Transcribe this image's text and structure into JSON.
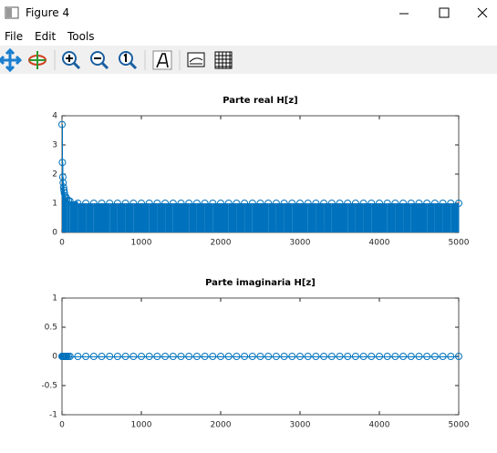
{
  "window": {
    "title": "Figure 4"
  },
  "menu": [
    "File",
    "Edit",
    "Tools"
  ],
  "chart_data": [
    {
      "type": "stem",
      "title": "Parte real H[z]",
      "color": "#0072bd",
      "x": [
        0,
        5,
        10,
        15,
        20,
        25,
        30,
        40,
        50,
        60,
        80,
        100,
        200,
        300,
        400,
        500,
        600,
        700,
        800,
        900,
        1000,
        1100,
        1200,
        1300,
        1400,
        1500,
        1600,
        1700,
        1800,
        1900,
        2000,
        2100,
        2200,
        2300,
        2400,
        2500,
        2600,
        2700,
        2800,
        2900,
        3000,
        3100,
        3200,
        3300,
        3400,
        3500,
        3600,
        3700,
        3800,
        3900,
        4000,
        4100,
        4200,
        4300,
        4400,
        4500,
        4600,
        4700,
        4800,
        4900,
        5000
      ],
      "values": [
        3.7,
        2.4,
        1.9,
        1.7,
        1.55,
        1.45,
        1.35,
        1.25,
        1.2,
        1.15,
        1.1,
        1.07,
        1,
        1,
        1,
        1,
        1,
        1,
        1,
        1,
        1,
        1,
        1,
        1,
        1,
        1,
        1,
        1,
        1,
        1,
        1,
        1,
        1,
        1,
        1,
        1,
        1,
        1,
        1,
        1,
        1,
        1,
        1,
        1,
        1,
        1,
        1,
        1,
        1,
        1,
        1,
        1,
        1,
        1,
        1,
        1,
        1,
        1,
        1,
        1,
        1
      ],
      "xlim": [
        0,
        5000
      ],
      "ylim": [
        0,
        4
      ],
      "xticks": [
        0,
        1000,
        2000,
        3000,
        4000,
        5000
      ],
      "yticks": [
        0,
        1,
        2,
        3,
        4
      ]
    },
    {
      "type": "stem",
      "title": "Parte imaginaria H[z]",
      "color": "#0072bd",
      "x": [
        0,
        5,
        10,
        15,
        20,
        25,
        30,
        40,
        50,
        60,
        80,
        100,
        200,
        300,
        400,
        500,
        600,
        700,
        800,
        900,
        1000,
        1100,
        1200,
        1300,
        1400,
        1500,
        1600,
        1700,
        1800,
        1900,
        2000,
        2100,
        2200,
        2300,
        2400,
        2500,
        2600,
        2700,
        2800,
        2900,
        3000,
        3100,
        3200,
        3300,
        3400,
        3500,
        3600,
        3700,
        3800,
        3900,
        4000,
        4100,
        4200,
        4300,
        4400,
        4500,
        4600,
        4700,
        4800,
        4900,
        5000
      ],
      "values": [
        0,
        0,
        0,
        0,
        0,
        0,
        0,
        0,
        0,
        0,
        0,
        0,
        0,
        0,
        0,
        0,
        0,
        0,
        0,
        0,
        0,
        0,
        0,
        0,
        0,
        0,
        0,
        0,
        0,
        0,
        0,
        0,
        0,
        0,
        0,
        0,
        0,
        0,
        0,
        0,
        0,
        0,
        0,
        0,
        0,
        0,
        0,
        0,
        0,
        0,
        0,
        0,
        0,
        0,
        0,
        0,
        0,
        0,
        0,
        0,
        0
      ],
      "xlim": [
        0,
        5000
      ],
      "ylim": [
        -1,
        1
      ],
      "xticks": [
        0,
        1000,
        2000,
        3000,
        4000,
        5000
      ],
      "yticks": [
        -1,
        -0.5,
        0,
        0.5,
        1
      ]
    }
  ]
}
